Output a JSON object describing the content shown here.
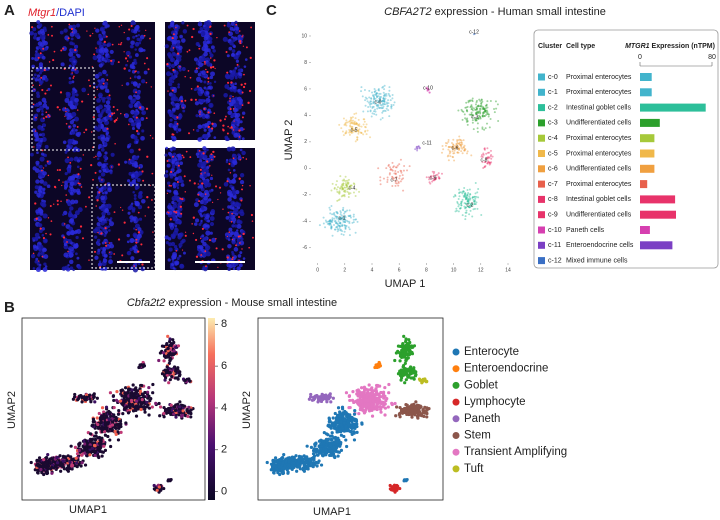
{
  "panel_a": {
    "label": "A",
    "title_gene": "Mtgr1",
    "title_rest": "/DAPI"
  },
  "panel_c": {
    "label": "C",
    "title_gene": "CBFA2T2",
    "title_rest": " expression - Human small intestine",
    "umap": {
      "xlabel": "UMAP 1",
      "ylabel": "UMAP 2",
      "xlim": [
        -1,
        15
      ],
      "ylim": [
        -7,
        11
      ],
      "xticks": [
        0,
        2,
        4,
        6,
        8,
        10,
        12,
        14
      ],
      "yticks": [
        -6,
        -4,
        -2,
        0,
        2,
        4,
        6,
        8,
        10
      ]
    },
    "table": {
      "headers": [
        "Cluster",
        "Cell type"
      ],
      "expr_header_gene": "MTGR1",
      "expr_header_rest": " Expression (nTPM)",
      "xlim": [
        0,
        80
      ],
      "xticks": [
        0,
        80
      ],
      "rows": [
        {
          "cluster": "c-0",
          "cell_type": "Proximal enterocytes",
          "color": "#42b4cc",
          "value": 13
        },
        {
          "cluster": "c-1",
          "cell_type": "Proximal enterocytes",
          "color": "#42b4cc",
          "value": 13
        },
        {
          "cluster": "c-2",
          "cell_type": "Intestinal goblet cells",
          "color": "#2dbf9a",
          "value": 73
        },
        {
          "cluster": "c-3",
          "cell_type": "Undifferentiated cells",
          "color": "#2ca02c",
          "value": 22
        },
        {
          "cluster": "c-4",
          "cell_type": "Proximal enterocytes",
          "color": "#a6c93a",
          "value": 16
        },
        {
          "cluster": "c-5",
          "cell_type": "Proximal enterocytes",
          "color": "#f0b84a",
          "value": 16
        },
        {
          "cluster": "c-6",
          "cell_type": "Undifferentiated cells",
          "color": "#f0a040",
          "value": 16
        },
        {
          "cluster": "c-7",
          "cell_type": "Proximal enterocytes",
          "color": "#e8604c",
          "value": 8
        },
        {
          "cluster": "c-8",
          "cell_type": "Intestinal goblet cells",
          "color": "#e8336a",
          "value": 39
        },
        {
          "cluster": "c-9",
          "cell_type": "Undifferentiated cells",
          "color": "#e8336a",
          "value": 40
        },
        {
          "cluster": "c-10",
          "cell_type": "Paneth cells",
          "color": "#d63fb0",
          "value": 11
        },
        {
          "cluster": "c-11",
          "cell_type": "Enteroendocrine cells",
          "color": "#7b3fc4",
          "value": 36
        },
        {
          "cluster": "c-12",
          "cell_type": "Mixed immune cells",
          "color": "#3a6fc4",
          "value": 0
        }
      ]
    }
  },
  "panel_b": {
    "label": "B",
    "title_gene": "Cbfa2t2",
    "title_rest": " expression - Mouse small intestine",
    "xlabel": "UMAP1",
    "ylabel": "UMAP2",
    "colorbar": {
      "lim": [
        -0.4,
        8.3
      ],
      "ticks": [
        0,
        2,
        4,
        6,
        8
      ]
    },
    "legend": [
      {
        "name": "Enterocyte",
        "color": "#1f77b4"
      },
      {
        "name": "Enteroendocrine",
        "color": "#ff7f0e"
      },
      {
        "name": "Goblet",
        "color": "#2ca02c"
      },
      {
        "name": "Lymphocyte",
        "color": "#d62728"
      },
      {
        "name": "Paneth",
        "color": "#9467bd"
      },
      {
        "name": "Stem",
        "color": "#8c564b"
      },
      {
        "name": "Transient Amplifying",
        "color": "#e377c2"
      },
      {
        "name": "Tuft",
        "color": "#bcbd22"
      }
    ]
  }
}
